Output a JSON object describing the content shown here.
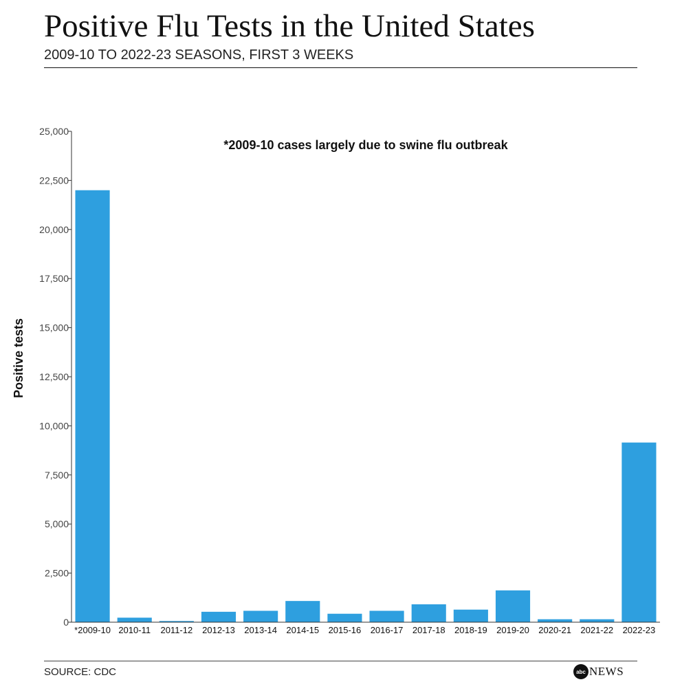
{
  "header": {
    "title": "Positive Flu Tests in the United States",
    "subtitle": "2009-10 TO 2022-23 SEASONS, FIRST 3 WEEKS"
  },
  "footer": {
    "source": "SOURCE: CDC",
    "logo_mark": "abc",
    "logo_text": "NEWS"
  },
  "colors": {
    "bar": "#2e9fdf",
    "axis": "#333333",
    "text": "#111111"
  },
  "chart_data": {
    "type": "bar",
    "categories": [
      "*2009-10",
      "2010-11",
      "2011-12",
      "2012-13",
      "2013-14",
      "2014-15",
      "2015-16",
      "2016-17",
      "2017-18",
      "2018-19",
      "2019-20",
      "2020-21",
      "2021-22",
      "2022-23"
    ],
    "values": [
      22000,
      230,
      60,
      530,
      580,
      1080,
      430,
      580,
      910,
      640,
      1620,
      150,
      150,
      9150
    ],
    "title": "",
    "xlabel": "",
    "ylabel": "Positive tests",
    "ylim": [
      0,
      25000
    ],
    "yticks": [
      0,
      2500,
      5000,
      7500,
      10000,
      12500,
      15000,
      17500,
      20000,
      22500,
      25000
    ],
    "ytick_labels": [
      "0",
      "2,500",
      "5,000",
      "7,500",
      "10,000",
      "12,500",
      "15,000",
      "17,500",
      "20,000",
      "22,500",
      "25,000"
    ],
    "annotation": "*2009-10 cases largely due to swine flu outbreak",
    "grid": false,
    "legend": "none"
  }
}
